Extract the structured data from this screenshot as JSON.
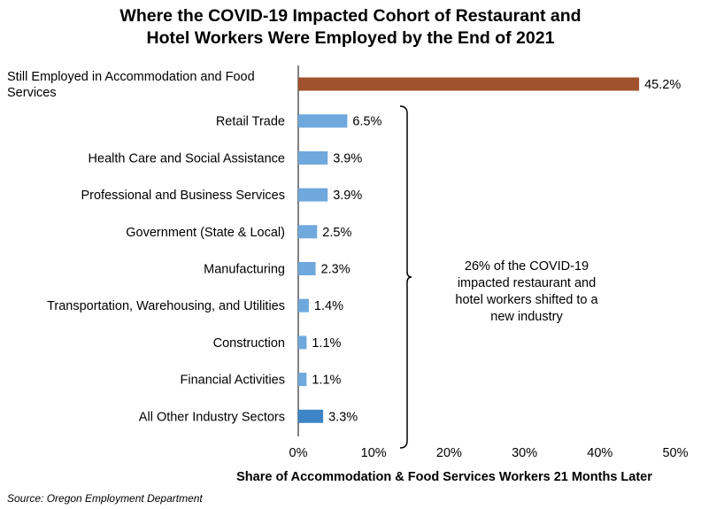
{
  "title_lines": [
    "Where the COVID-19 Impacted Cohort of Restaurant and",
    "Hotel Workers Were Employed by the End of 2021"
  ],
  "source": "Source: Oregon Employment Department",
  "annotation_lines": [
    "26% of the COVID-19",
    "impacted restaurant and",
    "hotel workers shifted to a",
    "new industry"
  ],
  "colors": {
    "highlight": "#a0522d",
    "industry": "#6fa8dc",
    "other": "#3d85c6",
    "axis": "#000000"
  },
  "chart_data": {
    "type": "bar",
    "orientation": "horizontal",
    "title": "Where the COVID-19 Impacted Cohort of Restaurant and Hotel Workers Were Employed by the End of 2021",
    "xlabel": "Share of Accommodation & Food Services Workers 21 Months Later",
    "ylabel": "",
    "xlim": [
      0,
      50
    ],
    "x_ticks": [
      "0%",
      "10%",
      "20%",
      "30%",
      "40%",
      "50%"
    ],
    "grid": false,
    "categories": [
      [
        "Still Employed in Accommodation and Food",
        "Services"
      ],
      [
        "Retail Trade"
      ],
      [
        "Health Care and Social Assistance"
      ],
      [
        "Professional and Business Services"
      ],
      [
        "Government (State & Local)"
      ],
      [
        "Manufacturing"
      ],
      [
        "Transportation, Warehousing, and Utilities"
      ],
      [
        "Construction"
      ],
      [
        "Financial Activities"
      ],
      [
        "All Other Industry Sectors"
      ]
    ],
    "values": [
      45.2,
      6.5,
      3.9,
      3.9,
      2.5,
      2.3,
      1.4,
      1.1,
      1.1,
      3.3
    ],
    "value_labels": [
      "45.2%",
      "6.5%",
      "3.9%",
      "3.9%",
      "2.5%",
      "2.3%",
      "1.4%",
      "1.1%",
      "1.1%",
      "3.3%"
    ],
    "bar_color_keys": [
      "highlight",
      "industry",
      "industry",
      "industry",
      "industry",
      "industry",
      "industry",
      "industry",
      "industry",
      "other"
    ]
  }
}
